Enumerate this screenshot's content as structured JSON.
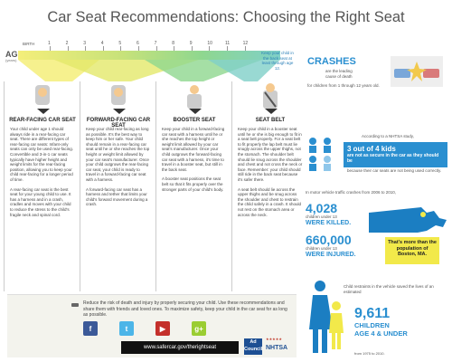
{
  "title": "Car Seat Recommendations: Choosing the Right Seat",
  "age_axis": {
    "label": "AGE",
    "sublabel": "(years)",
    "birth_label": "BIRTH",
    "ticks": [
      "1",
      "2",
      "3",
      "4",
      "5",
      "6",
      "7",
      "8",
      "9",
      "10",
      "11",
      "12"
    ]
  },
  "keep_back_seat": "Keep your child in the back seat at least through age 12.",
  "columns": [
    {
      "heading": "REAR-FACING CAR SEAT",
      "icon": "rear-facing-seat-icon",
      "paragraphs": [
        "Your child under age 1 should always ride in a rear-facing car seat. There are different types of rear-facing car seats: Infant-only seats can only be used rear-facing. Convertible and 3-in-1 car seats typically have higher height and weight limits for the rear-facing position, allowing you to keep your child rear-facing for a longer period of time.",
        "A rear-facing car seat is the best seat for your young child to use. It has a harness and in a crash, cradles and moves with your child to reduce the stress to the child's fragile neck and spinal cord."
      ]
    },
    {
      "heading": "FORWARD-FACING CAR SEAT",
      "icon": "forward-facing-seat-icon",
      "paragraphs": [
        "Keep your child rear-facing as long as possible. It's the best way to keep him or her safe. Your child should remain in a rear-facing car seat until he or she reaches the top height or weight limit allowed by your car seat's manufacturer. Once your child outgrows the rear-facing car seat, your child is ready to travel in a forward-facing car seat with a harness.",
        "A forward-facing car seat has a harness and tether that limits your child's forward movement during a crash."
      ]
    },
    {
      "heading": "BOOSTER SEAT",
      "icon": "booster-seat-icon",
      "paragraphs": [
        "Keep your child in a forward-facing car seat with a harness until he or she reaches the top height or weight limit allowed by your car seat's manufacturer. Once your child outgrows the forward-facing car seat with a harness, it's time to travel in a booster seat, but still in the back seat.",
        "A booster seat positions the seat belt so that it fits properly over the stronger parts of your child's body."
      ]
    },
    {
      "heading": "SEAT BELT",
      "icon": "seat-belt-icon",
      "paragraphs": [
        "Keep your child in a booster seat until he or she is big enough to fit in a seat belt properly. For a seat belt to fit properly the lap belt must lie snugly across the upper thighs, not the stomach. The shoulder belt should lie snug across the shoulder and chest and not cross the neck or face. Remember: your child should still ride in the back seat because it's safer there.",
        "A seat belt should lie across the upper thighs and be snug across the shoulder and chest to restrain the child safely in a crash. It should not rest on the stomach area or across the neck."
      ]
    }
  ],
  "crashes": {
    "title": "CRASHES",
    "subtitle": "are the leading cause of death",
    "tagline": "for children from 1 through 12 years old."
  },
  "nhtsa_study": {
    "intro": "According to a NHTSA study,",
    "headline": "3 out of 4 kids",
    "sub": "are not as secure in the car as they should be",
    "tail": "because their car seats are not being used correctly."
  },
  "mvtc_intro": "In motor vehicle traffic crashes from 2006 to 2010,",
  "killed": {
    "number": "4,028",
    "small": "children under 13",
    "caption": "WERE KILLED."
  },
  "injured": {
    "number": "660,000",
    "small": "children under 13",
    "caption": "WERE INJURED."
  },
  "ma_note": "That's more than the population of Boston, MA.",
  "restraint_intro": "Child restraints in the vehicle saved the lives of an estimated",
  "saved": {
    "number": "9,611",
    "caption_1": "CHILDREN",
    "caption_2": "AGE 4 & UNDER",
    "tail": "from 1975 to 2010."
  },
  "bottom": {
    "text": "Reduce the risk of death and injury by properly securing your child. Use these recommendations and share them with friends and loved ones. To maximize safety, keep your child in the car seat for as long as possible.",
    "url": "www.safercar.gov/therightseat",
    "social": [
      {
        "name": "facebook",
        "glyph": "f",
        "color": "#3b5998"
      },
      {
        "name": "twitter",
        "glyph": "t",
        "color": "#4cb5e8"
      },
      {
        "name": "youtube",
        "glyph": "▶",
        "color": "#c4302b"
      },
      {
        "name": "googleplus",
        "glyph": "g+",
        "color": "#9acd32"
      }
    ],
    "adcouncil": "Ad Council",
    "nhtsa_logo": "NHTSA"
  }
}
